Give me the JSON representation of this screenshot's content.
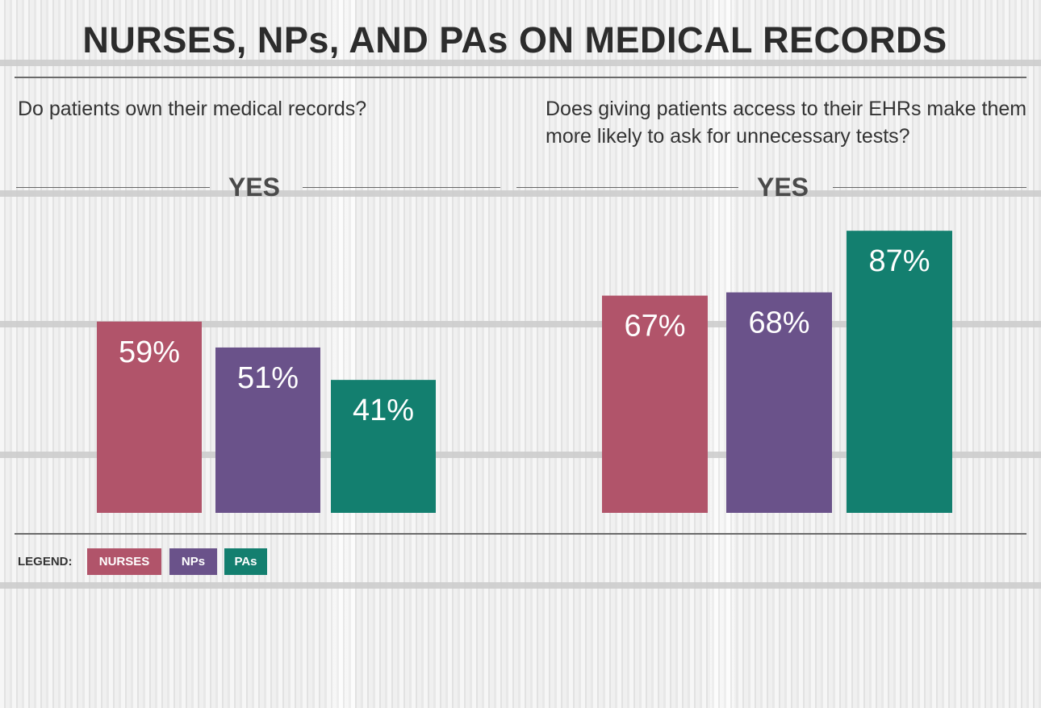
{
  "title": "NURSES, NPs, AND PAs ON MEDICAL RECORDS",
  "legend": {
    "label": "LEGEND:",
    "items": [
      "NURSES",
      "NPs",
      "PAs"
    ]
  },
  "colors": {
    "nurses": "#b1546a",
    "nps": "#6a528a",
    "pas": "#137f6f"
  },
  "chart_data": [
    {
      "type": "bar",
      "title": "Do patients own their medical records?",
      "subtitle": "YES",
      "categories": [
        "NURSES",
        "NPs",
        "PAs"
      ],
      "values": [
        59,
        51,
        41
      ],
      "labels": [
        "59%",
        "51%",
        "41%"
      ],
      "colors": [
        "#b1546a",
        "#6a528a",
        "#137f6f"
      ],
      "ylim": [
        0,
        96
      ],
      "grid": false
    },
    {
      "type": "bar",
      "title": "Does giving patients access to their EHRs make them more likely to ask for unnecessary tests?",
      "subtitle": "YES",
      "categories": [
        "NURSES",
        "NPs",
        "PAs"
      ],
      "values": [
        67,
        68,
        87
      ],
      "labels": [
        "67%",
        "68%",
        "87%"
      ],
      "colors": [
        "#b1546a",
        "#6a528a",
        "#137f6f"
      ],
      "ylim": [
        0,
        96
      ],
      "grid": false
    }
  ]
}
